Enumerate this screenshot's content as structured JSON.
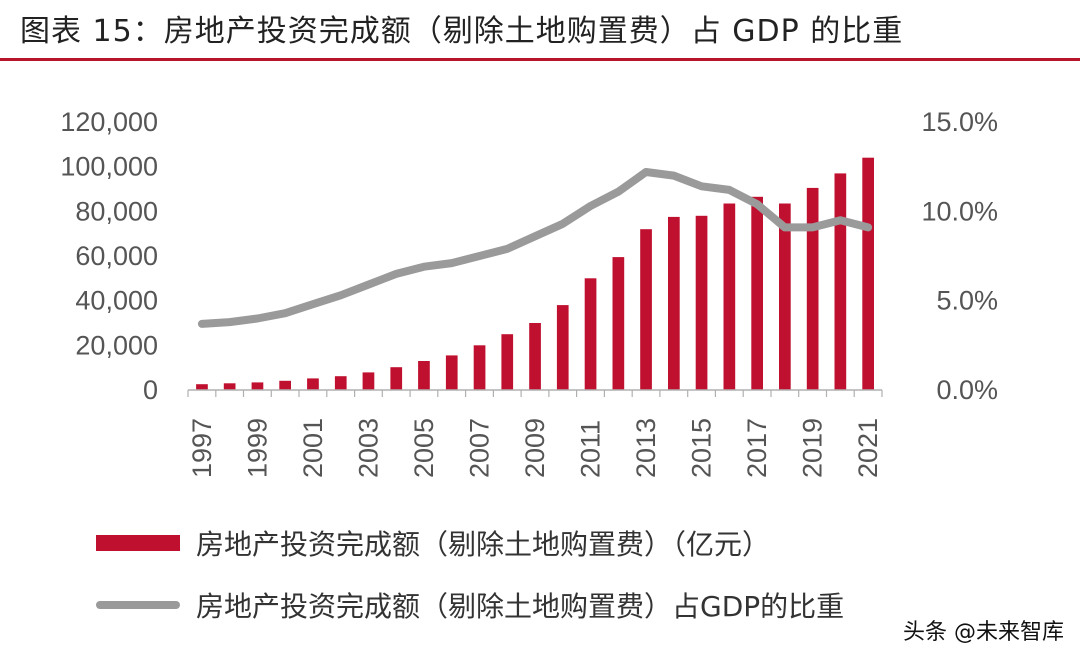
{
  "title": "图表 15：房地产投资完成额（剔除土地购置费）占 GDP 的比重",
  "watermark": "头条 @未来智库",
  "chart_data": {
    "type": "bar+line",
    "categories": [
      "1997",
      "1998",
      "1999",
      "2000",
      "2001",
      "2002",
      "2003",
      "2004",
      "2005",
      "2006",
      "2007",
      "2008",
      "2009",
      "2010",
      "2011",
      "2012",
      "2013",
      "2014",
      "2015",
      "2016",
      "2017",
      "2018",
      "2019",
      "2020",
      "2021"
    ],
    "x_tick_labels": [
      "1997",
      "1999",
      "2001",
      "2003",
      "2005",
      "2007",
      "2009",
      "2011",
      "2013",
      "2015",
      "2017",
      "2019",
      "2021"
    ],
    "series": [
      {
        "name": "房地产投资完成额（剔除土地购置费）（亿元）",
        "type": "bar",
        "axis": "left",
        "color": "#c0102f",
        "values": [
          2600,
          3000,
          3400,
          4100,
          5200,
          6200,
          7900,
          10200,
          13000,
          15500,
          20000,
          25000,
          30000,
          38000,
          50000,
          59500,
          72000,
          77500,
          78000,
          83500,
          86500,
          83500,
          90500,
          97000,
          104000
        ]
      },
      {
        "name": "房地产投资完成额（剔除土地购置费）占GDP的比重",
        "type": "line",
        "axis": "right",
        "color": "#9a9a9a",
        "values": [
          3.7,
          3.8,
          4.0,
          4.3,
          4.8,
          5.3,
          5.9,
          6.5,
          6.9,
          7.1,
          7.5,
          7.9,
          8.6,
          9.3,
          10.3,
          11.1,
          12.2,
          12.0,
          11.4,
          11.2,
          10.4,
          9.1,
          9.1,
          9.5,
          9.1
        ]
      }
    ],
    "y_left": {
      "ylim": [
        0,
        120000
      ],
      "ticks": [
        "0",
        "20,000",
        "40,000",
        "60,000",
        "80,000",
        "100,000",
        "120,000"
      ],
      "tick_values": [
        0,
        20000,
        40000,
        60000,
        80000,
        100000,
        120000
      ]
    },
    "y_right": {
      "ylim": [
        0,
        15
      ],
      "ticks": [
        "0.0%",
        "5.0%",
        "10.0%",
        "15.0%"
      ],
      "tick_values": [
        0,
        5,
        10,
        15
      ]
    },
    "legend": [
      {
        "label": "房地产投资完成额（剔除土地购置费）（亿元）",
        "kind": "bar"
      },
      {
        "label": "房地产投资完成额（剔除土地购置费）占GDP的比重",
        "kind": "line"
      }
    ],
    "legend_placement": "bottom"
  }
}
